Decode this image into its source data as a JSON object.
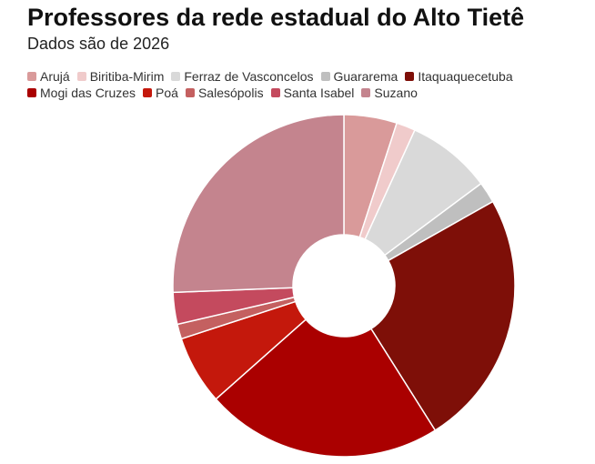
{
  "chart_data": {
    "type": "donut",
    "title": "Professores da rede estadual do Alto Tietê",
    "subtitle": "Dados são de 2026",
    "categories": [
      "Arujá",
      "Biritiba-Mirim",
      "Ferraz de Vasconcelos",
      "Guararema",
      "Itaquaquecetuba",
      "Mogi das Cruzes",
      "Poá",
      "Salesópolis",
      "Santa Isabel",
      "Suzano"
    ],
    "values": [
      5,
      1.8,
      8,
      2,
      24.2,
      22.4,
      6.5,
      1.4,
      3,
      25.6
    ],
    "colors": [
      "#d99a9a",
      "#f0cbcb",
      "#d9d9d9",
      "#bfbfbf",
      "#7e0f08",
      "#aa0000",
      "#c4180c",
      "#c46060",
      "#c44a5e",
      "#c4848e"
    ]
  }
}
